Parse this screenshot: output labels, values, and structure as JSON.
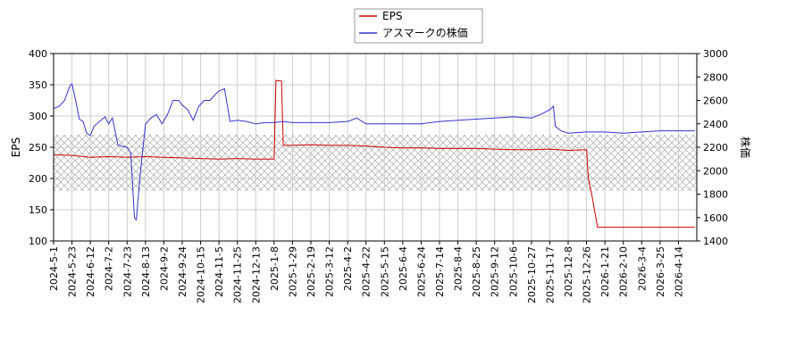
{
  "chart_data": {
    "type": "line",
    "x_ticks": [
      "2024-5-1",
      "2024-5-23",
      "2024-6-12",
      "2024-7-2",
      "2024-7-23",
      "2024-8-13",
      "2024-9-2",
      "2024-9-24",
      "2024-10-15",
      "2024-11-5",
      "2024-11-25",
      "2024-12-13",
      "2025-1-8",
      "2025-1-29",
      "2025-2-19",
      "2025-3-12",
      "2025-4-2",
      "2025-4-22",
      "2025-5-15",
      "2025-6-4",
      "2025-6-24",
      "2025-7-14",
      "2025-8-4",
      "2025-8-25",
      "2025-9-12",
      "2025-10-6",
      "2025-10-27",
      "2025-11-17",
      "2025-12-8",
      "2025-12-26",
      "2026-1-21",
      "2026-2-10",
      "2026-3-4",
      "2026-3-25",
      "2026-4-14"
    ],
    "y_left": {
      "label": "EPS",
      "ticks": [
        100,
        150,
        200,
        250,
        300,
        350,
        400
      ],
      "ylim": [
        100,
        400
      ]
    },
    "y_right": {
      "label": "株価",
      "ticks": [
        1400,
        1600,
        1800,
        2000,
        2200,
        2400,
        2600,
        2800,
        3000
      ],
      "ylim": [
        1400,
        3000
      ]
    },
    "shaded_band": {
      "axis": "left",
      "range": [
        180,
        270
      ]
    },
    "grid": true,
    "legend_position": "top-center",
    "series": [
      {
        "name": "EPS",
        "axis": "left",
        "color": "#cc0000",
        "points": [
          [
            0,
            238
          ],
          [
            1,
            237
          ],
          [
            2,
            234
          ],
          [
            3,
            235
          ],
          [
            4,
            234
          ],
          [
            5,
            235
          ],
          [
            6,
            234
          ],
          [
            7,
            233
          ],
          [
            8,
            232
          ],
          [
            9,
            231
          ],
          [
            10,
            232
          ],
          [
            11,
            231
          ],
          [
            12,
            231
          ],
          [
            12.1,
            357
          ],
          [
            12.4,
            356
          ],
          [
            12.5,
            253
          ],
          [
            13,
            253
          ],
          [
            14,
            254
          ],
          [
            15,
            253
          ],
          [
            16,
            253
          ],
          [
            17,
            252
          ],
          [
            18,
            250
          ],
          [
            19,
            249
          ],
          [
            20,
            249
          ],
          [
            21,
            248
          ],
          [
            22,
            248
          ],
          [
            23,
            248
          ],
          [
            24,
            247
          ],
          [
            25,
            246
          ],
          [
            26,
            246
          ],
          [
            27,
            247
          ],
          [
            28,
            245
          ],
          [
            29,
            246
          ],
          [
            29.1,
            200
          ],
          [
            29.3,
            172
          ],
          [
            29.6,
            122
          ],
          [
            30,
            122
          ],
          [
            31,
            122
          ],
          [
            32,
            122
          ],
          [
            33,
            122
          ],
          [
            34,
            122
          ],
          [
            34.9,
            122
          ]
        ]
      },
      {
        "name": "アスマークの株価",
        "axis": "right",
        "color": "#3333cc",
        "points": [
          [
            0,
            2530
          ],
          [
            0.3,
            2550
          ],
          [
            0.6,
            2600
          ],
          [
            0.9,
            2730
          ],
          [
            1.0,
            2740
          ],
          [
            1.2,
            2600
          ],
          [
            1.4,
            2440
          ],
          [
            1.6,
            2420
          ],
          [
            1.8,
            2320
          ],
          [
            2.0,
            2300
          ],
          [
            2.2,
            2380
          ],
          [
            2.5,
            2420
          ],
          [
            2.8,
            2460
          ],
          [
            3.0,
            2400
          ],
          [
            3.2,
            2450
          ],
          [
            3.5,
            2220
          ],
          [
            3.7,
            2210
          ],
          [
            4.0,
            2200
          ],
          [
            4.2,
            2150
          ],
          [
            4.4,
            1600
          ],
          [
            4.5,
            1580
          ],
          [
            4.7,
            1950
          ],
          [
            5.0,
            2400
          ],
          [
            5.3,
            2450
          ],
          [
            5.6,
            2480
          ],
          [
            5.9,
            2400
          ],
          [
            6.2,
            2480
          ],
          [
            6.5,
            2600
          ],
          [
            6.8,
            2600
          ],
          [
            7.0,
            2560
          ],
          [
            7.3,
            2520
          ],
          [
            7.6,
            2430
          ],
          [
            7.9,
            2550
          ],
          [
            8.2,
            2600
          ],
          [
            8.5,
            2600
          ],
          [
            8.8,
            2650
          ],
          [
            9.0,
            2680
          ],
          [
            9.3,
            2700
          ],
          [
            9.6,
            2420
          ],
          [
            10,
            2430
          ],
          [
            10.5,
            2420
          ],
          [
            11,
            2400
          ],
          [
            11.5,
            2410
          ],
          [
            12,
            2410
          ],
          [
            12.5,
            2420
          ],
          [
            13,
            2410
          ],
          [
            14,
            2410
          ],
          [
            15,
            2410
          ],
          [
            16,
            2420
          ],
          [
            16.5,
            2450
          ],
          [
            17,
            2400
          ],
          [
            18,
            2400
          ],
          [
            19,
            2400
          ],
          [
            20,
            2400
          ],
          [
            21,
            2420
          ],
          [
            22,
            2430
          ],
          [
            23,
            2440
          ],
          [
            24,
            2450
          ],
          [
            25,
            2460
          ],
          [
            26,
            2450
          ],
          [
            26.5,
            2480
          ],
          [
            27,
            2520
          ],
          [
            27.2,
            2550
          ],
          [
            27.3,
            2380
          ],
          [
            27.6,
            2340
          ],
          [
            28,
            2320
          ],
          [
            29,
            2330
          ],
          [
            30,
            2330
          ],
          [
            31,
            2320
          ],
          [
            32,
            2330
          ],
          [
            33,
            2340
          ],
          [
            34,
            2340
          ],
          [
            34.9,
            2340
          ]
        ]
      }
    ]
  }
}
